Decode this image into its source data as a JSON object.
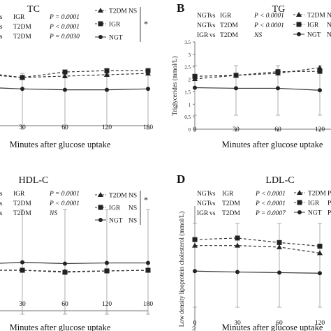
{
  "chart_data": [
    {
      "panel": "",
      "title": "TC",
      "type": "line",
      "xlabel": "Minutes after glucose uptake",
      "ylabel": "",
      "x": [
        30,
        60,
        120,
        180
      ],
      "x_ticks": [
        "30",
        "60",
        "120",
        "180"
      ],
      "comparisons": [
        {
          "left": "T",
          "vs": "vs",
          "right": "IGR",
          "p": "P = 0.0001"
        },
        {
          "left": "T",
          "vs": "vs",
          "right": "T2DM",
          "p": "P < 0.0001"
        },
        {
          "left": "T",
          "vs": "vs",
          "right": "T2DM",
          "p": "P = 0.0030"
        }
      ],
      "legend": [
        {
          "name": "T2DM",
          "sig": "NS",
          "marker": "triangle",
          "dash": "4,3"
        },
        {
          "name": "IGR",
          "sig": "",
          "marker": "square",
          "dash": "4,3"
        },
        {
          "name": "NGT",
          "sig": "",
          "marker": "circle",
          "dash": ""
        }
      ],
      "star": "*",
      "series": [
        {
          "name": "T2DM",
          "x": [
            0,
            30,
            60,
            120,
            180
          ],
          "values": [
            5.15,
            5.05,
            5.08,
            5.11,
            5.14
          ]
        },
        {
          "name": "IGR",
          "x": [
            0,
            30,
            60,
            120,
            180
          ],
          "values": [
            5.2,
            5.05,
            5.17,
            5.2,
            5.2
          ]
        },
        {
          "name": "NGT",
          "x": [
            0,
            30,
            60,
            120,
            180
          ],
          "values": [
            4.85,
            4.8,
            4.78,
            4.78,
            4.8
          ]
        }
      ]
    },
    {
      "panel": "B",
      "title": "TG",
      "type": "line",
      "xlabel": "Minutes after glucose uptake",
      "ylabel": "Triglycerides (mmol/L)",
      "x": [
        0,
        30,
        60,
        120
      ],
      "x_ticks": [
        "0",
        "30",
        "60",
        "120"
      ],
      "ylim": [
        0,
        3.5
      ],
      "y_ticks": [
        "0",
        "0.5",
        "1",
        "1.5",
        "2",
        "2.5",
        "3",
        "3.5"
      ],
      "comparisons": [
        {
          "left": "NGT",
          "vs": "vs",
          "right": "IGR",
          "p": "P < 0.0001"
        },
        {
          "left": "NGT",
          "vs": "vs",
          "right": "T2DM",
          "p": "P < 0.0001"
        },
        {
          "left": "IGR",
          "vs": "vs",
          "right": "T2DM",
          "p": "NS"
        }
      ],
      "legend": [
        {
          "name": "T2DM",
          "sig": "N",
          "marker": "triangle",
          "dash": "4,3"
        },
        {
          "name": "IGR",
          "sig": "NS",
          "marker": "square",
          "dash": "4,3"
        },
        {
          "name": "NGT",
          "sig": "NS",
          "marker": "circle",
          "dash": ""
        }
      ],
      "series": [
        {
          "name": "T2DM",
          "x": [
            0,
            30,
            60,
            120
          ],
          "values": [
            1.82,
            2.0,
            2.1,
            2.38
          ]
        },
        {
          "name": "IGR",
          "x": [
            0,
            30,
            60,
            120
          ],
          "values": [
            1.95,
            2.0,
            2.18,
            2.2
          ]
        },
        {
          "name": "NGT",
          "x": [
            0,
            30,
            60,
            120
          ],
          "values": [
            1.38,
            1.35,
            1.35,
            1.25
          ]
        }
      ]
    },
    {
      "panel": "",
      "title": "HDL-C",
      "type": "line",
      "xlabel": "Minutes after glucose uptake",
      "ylabel": "",
      "x": [
        30,
        60,
        120,
        180
      ],
      "x_ticks": [
        "30",
        "60",
        "120",
        "180"
      ],
      "comparisons": [
        {
          "left": "T",
          "vs": "vs",
          "right": "IGR",
          "p": "P = 0.0001"
        },
        {
          "left": "T",
          "vs": "vs",
          "right": "T2DM",
          "p": "P < 0.0001"
        },
        {
          "left": "R",
          "vs": "vs",
          "right": "T2DM",
          "p": "NS"
        }
      ],
      "legend": [
        {
          "name": "T2DM",
          "sig": "NS",
          "marker": "triangle",
          "dash": "4,3"
        },
        {
          "name": "IGR",
          "sig": "NS",
          "marker": "square",
          "dash": "4,3"
        },
        {
          "name": "NGT",
          "sig": "NS",
          "marker": "circle",
          "dash": ""
        }
      ],
      "star": "*",
      "series": [
        {
          "name": "T2DM",
          "x": [
            0,
            30,
            60,
            120,
            180
          ],
          "values": [
            1.0,
            1.0,
            0.98,
            0.99,
            1.0
          ]
        },
        {
          "name": "IGR",
          "x": [
            0,
            30,
            60,
            120,
            180
          ],
          "values": [
            1.0,
            1.0,
            0.97,
            0.99,
            1.0
          ]
        },
        {
          "name": "NGT",
          "x": [
            0,
            30,
            60,
            120,
            180
          ],
          "values": [
            1.08,
            1.12,
            1.1,
            1.11,
            1.11
          ]
        }
      ]
    },
    {
      "panel": "D",
      "title": "LDL-C",
      "type": "line",
      "xlabel": "Minutes after glucose uptake",
      "ylabel": "Low density lipoprotein cholesterol (mmol/L)",
      "x": [
        0,
        30,
        60,
        120
      ],
      "x_ticks": [
        "0",
        "30",
        "60",
        "120"
      ],
      "comparisons": [
        {
          "left": "NGT",
          "vs": "vs",
          "right": "IGR",
          "p": "P < 0.0001"
        },
        {
          "left": "NGT",
          "vs": "vs",
          "right": "T2DM",
          "p": "P < 0.0001"
        },
        {
          "left": "IGR",
          "vs": "vs",
          "right": "T2DM",
          "p": "P = 0.0007"
        }
      ],
      "legend": [
        {
          "name": "T2DM",
          "sig": "P",
          "marker": "triangle",
          "dash": "4,3"
        },
        {
          "name": "IGR",
          "sig": "P",
          "marker": "square",
          "dash": "4,3"
        },
        {
          "name": "NGT",
          "sig": "P",
          "marker": "circle",
          "dash": ""
        }
      ],
      "series": [
        {
          "name": "T2DM",
          "x": [
            0,
            30,
            60,
            120
          ],
          "values": [
            3.0,
            3.0,
            2.95,
            2.75
          ]
        },
        {
          "name": "IGR",
          "x": [
            0,
            30,
            60,
            120
          ],
          "values": [
            3.2,
            3.25,
            3.1,
            2.98
          ]
        },
        {
          "name": "NGT",
          "x": [
            0,
            30,
            60,
            120
          ],
          "values": [
            2.15,
            2.12,
            2.1,
            2.08
          ]
        }
      ]
    }
  ]
}
